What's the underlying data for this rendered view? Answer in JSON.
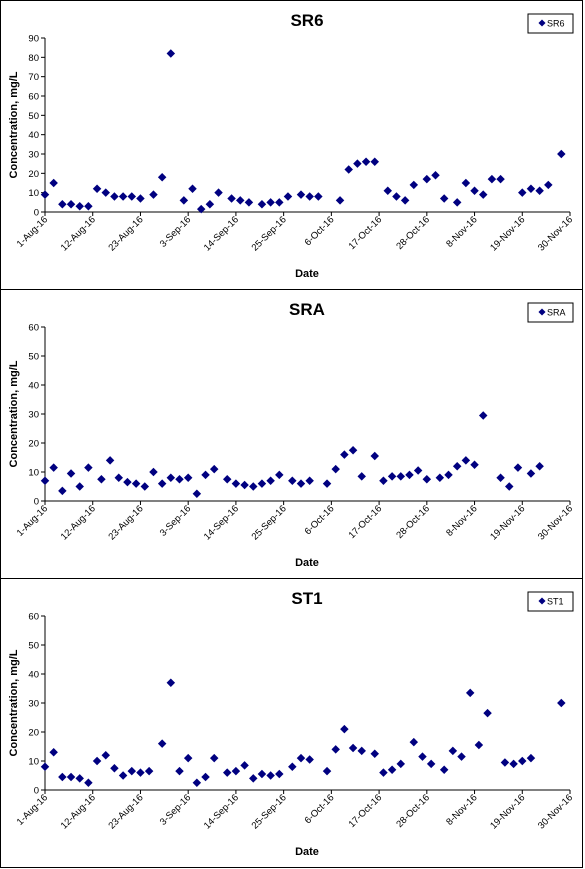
{
  "chart_data": [
    {
      "type": "scatter",
      "title": "SR6",
      "xlabel": "Date",
      "ylabel": "Concentration, mg/L",
      "legend": "SR6",
      "legend_position": "top-right",
      "color": "#000080",
      "ylim": [
        0,
        90
      ],
      "y_ticks": [
        0,
        10,
        20,
        30,
        40,
        50,
        60,
        70,
        80,
        90
      ],
      "xlim": [
        "2016-08-01",
        "2016-11-30"
      ],
      "x_ticks": [
        "1-Aug-16",
        "12-Aug-16",
        "23-Aug-16",
        "3-Sep-16",
        "14-Sep-16",
        "25-Sep-16",
        "6-Oct-16",
        "17-Oct-16",
        "28-Oct-16",
        "8-Nov-16",
        "19-Nov-16",
        "30-Nov-16"
      ],
      "points": [
        [
          "2016-08-01",
          9
        ],
        [
          "2016-08-03",
          15
        ],
        [
          "2016-08-05",
          4
        ],
        [
          "2016-08-07",
          4
        ],
        [
          "2016-08-09",
          3
        ],
        [
          "2016-08-11",
          3
        ],
        [
          "2016-08-13",
          12
        ],
        [
          "2016-08-15",
          10
        ],
        [
          "2016-08-17",
          8
        ],
        [
          "2016-08-19",
          8
        ],
        [
          "2016-08-21",
          8
        ],
        [
          "2016-08-23",
          7
        ],
        [
          "2016-08-26",
          9
        ],
        [
          "2016-08-28",
          18
        ],
        [
          "2016-08-30",
          82
        ],
        [
          "2016-09-02",
          6
        ],
        [
          "2016-09-04",
          12
        ],
        [
          "2016-09-06",
          1.5
        ],
        [
          "2016-09-08",
          4
        ],
        [
          "2016-09-10",
          10
        ],
        [
          "2016-09-13",
          7
        ],
        [
          "2016-09-15",
          6
        ],
        [
          "2016-09-17",
          5
        ],
        [
          "2016-09-20",
          4
        ],
        [
          "2016-09-22",
          5
        ],
        [
          "2016-09-24",
          5
        ],
        [
          "2016-09-26",
          8
        ],
        [
          "2016-09-29",
          9
        ],
        [
          "2016-10-01",
          8
        ],
        [
          "2016-10-03",
          8
        ],
        [
          "2016-10-08",
          6
        ],
        [
          "2016-10-10",
          22
        ],
        [
          "2016-10-12",
          25
        ],
        [
          "2016-10-14",
          26
        ],
        [
          "2016-10-16",
          26
        ],
        [
          "2016-10-19",
          11
        ],
        [
          "2016-10-21",
          8
        ],
        [
          "2016-10-23",
          6
        ],
        [
          "2016-10-25",
          14
        ],
        [
          "2016-10-28",
          17
        ],
        [
          "2016-10-30",
          19
        ],
        [
          "2016-11-01",
          7
        ],
        [
          "2016-11-04",
          5
        ],
        [
          "2016-11-06",
          15
        ],
        [
          "2016-11-08",
          11
        ],
        [
          "2016-11-10",
          9
        ],
        [
          "2016-11-12",
          17
        ],
        [
          "2016-11-14",
          17
        ],
        [
          "2016-11-19",
          10
        ],
        [
          "2016-11-21",
          12
        ],
        [
          "2016-11-23",
          11
        ],
        [
          "2016-11-25",
          14
        ],
        [
          "2016-11-28",
          30
        ]
      ]
    },
    {
      "type": "scatter",
      "title": "SRA",
      "xlabel": "Date",
      "ylabel": "Concentration, mg/L",
      "legend": "SRA",
      "legend_position": "top-right",
      "color": "#000080",
      "ylim": [
        0,
        60
      ],
      "y_ticks": [
        0,
        10,
        20,
        30,
        40,
        50,
        60
      ],
      "xlim": [
        "2016-08-01",
        "2016-11-30"
      ],
      "x_ticks": [
        "1-Aug-16",
        "12-Aug-16",
        "23-Aug-16",
        "3-Sep-16",
        "14-Sep-16",
        "25-Sep-16",
        "6-Oct-16",
        "17-Oct-16",
        "28-Oct-16",
        "8-Nov-16",
        "19-Nov-16",
        "30-Nov-16"
      ],
      "points": [
        [
          "2016-08-01",
          7
        ],
        [
          "2016-08-03",
          11.5
        ],
        [
          "2016-08-05",
          3.5
        ],
        [
          "2016-08-07",
          9.5
        ],
        [
          "2016-08-09",
          5
        ],
        [
          "2016-08-11",
          11.5
        ],
        [
          "2016-08-14",
          7.5
        ],
        [
          "2016-08-16",
          14
        ],
        [
          "2016-08-18",
          8
        ],
        [
          "2016-08-20",
          6.5
        ],
        [
          "2016-08-22",
          6
        ],
        [
          "2016-08-24",
          5
        ],
        [
          "2016-08-26",
          10
        ],
        [
          "2016-08-28",
          6
        ],
        [
          "2016-08-30",
          8
        ],
        [
          "2016-09-01",
          7.5
        ],
        [
          "2016-09-03",
          8
        ],
        [
          "2016-09-05",
          2.5
        ],
        [
          "2016-09-07",
          9
        ],
        [
          "2016-09-09",
          11
        ],
        [
          "2016-09-12",
          7.5
        ],
        [
          "2016-09-14",
          6
        ],
        [
          "2016-09-16",
          5.5
        ],
        [
          "2016-09-18",
          5
        ],
        [
          "2016-09-20",
          6
        ],
        [
          "2016-09-22",
          7
        ],
        [
          "2016-09-24",
          9
        ],
        [
          "2016-09-27",
          7
        ],
        [
          "2016-09-29",
          6
        ],
        [
          "2016-10-01",
          7
        ],
        [
          "2016-10-05",
          6
        ],
        [
          "2016-10-07",
          11
        ],
        [
          "2016-10-09",
          16
        ],
        [
          "2016-10-11",
          17.5
        ],
        [
          "2016-10-13",
          8.5
        ],
        [
          "2016-10-16",
          15.5
        ],
        [
          "2016-10-18",
          7
        ],
        [
          "2016-10-20",
          8.5
        ],
        [
          "2016-10-22",
          8.5
        ],
        [
          "2016-10-24",
          9
        ],
        [
          "2016-10-26",
          10.5
        ],
        [
          "2016-10-28",
          7.5
        ],
        [
          "2016-10-31",
          8
        ],
        [
          "2016-11-02",
          9
        ],
        [
          "2016-11-04",
          12
        ],
        [
          "2016-11-06",
          14
        ],
        [
          "2016-11-08",
          12.5
        ],
        [
          "2016-11-10",
          29.5
        ],
        [
          "2016-11-14",
          8
        ],
        [
          "2016-11-16",
          5
        ],
        [
          "2016-11-18",
          11.5
        ],
        [
          "2016-11-21",
          9.5
        ],
        [
          "2016-11-23",
          12
        ]
      ]
    },
    {
      "type": "scatter",
      "title": "ST1",
      "xlabel": "Date",
      "ylabel": "Concentration, mg/L",
      "legend": "ST1",
      "legend_position": "top-right",
      "color": "#000080",
      "ylim": [
        0,
        60
      ],
      "y_ticks": [
        0,
        10,
        20,
        30,
        40,
        50,
        60
      ],
      "xlim": [
        "2016-08-01",
        "2016-11-30"
      ],
      "x_ticks": [
        "1-Aug-16",
        "12-Aug-16",
        "23-Aug-16",
        "3-Sep-16",
        "14-Sep-16",
        "25-Sep-16",
        "6-Oct-16",
        "17-Oct-16",
        "28-Oct-16",
        "8-Nov-16",
        "19-Nov-16",
        "30-Nov-16"
      ],
      "points": [
        [
          "2016-08-01",
          8
        ],
        [
          "2016-08-03",
          13
        ],
        [
          "2016-08-05",
          4.5
        ],
        [
          "2016-08-07",
          4.5
        ],
        [
          "2016-08-09",
          4
        ],
        [
          "2016-08-11",
          2.5
        ],
        [
          "2016-08-13",
          10
        ],
        [
          "2016-08-15",
          12
        ],
        [
          "2016-08-17",
          7.5
        ],
        [
          "2016-08-19",
          5
        ],
        [
          "2016-08-21",
          6.5
        ],
        [
          "2016-08-23",
          6
        ],
        [
          "2016-08-25",
          6.5
        ],
        [
          "2016-08-28",
          16
        ],
        [
          "2016-08-30",
          37
        ],
        [
          "2016-09-01",
          6.5
        ],
        [
          "2016-09-03",
          11
        ],
        [
          "2016-09-05",
          2.5
        ],
        [
          "2016-09-07",
          4.5
        ],
        [
          "2016-09-09",
          11
        ],
        [
          "2016-09-12",
          6
        ],
        [
          "2016-09-14",
          6.5
        ],
        [
          "2016-09-16",
          8.5
        ],
        [
          "2016-09-18",
          4
        ],
        [
          "2016-09-20",
          5.5
        ],
        [
          "2016-09-22",
          5
        ],
        [
          "2016-09-24",
          5.5
        ],
        [
          "2016-09-27",
          8
        ],
        [
          "2016-09-29",
          11
        ],
        [
          "2016-10-01",
          10.5
        ],
        [
          "2016-10-05",
          6.5
        ],
        [
          "2016-10-07",
          14
        ],
        [
          "2016-10-09",
          21
        ],
        [
          "2016-10-11",
          14.5
        ],
        [
          "2016-10-13",
          13.5
        ],
        [
          "2016-10-16",
          12.5
        ],
        [
          "2016-10-18",
          6
        ],
        [
          "2016-10-20",
          7
        ],
        [
          "2016-10-22",
          9
        ],
        [
          "2016-10-25",
          16.5
        ],
        [
          "2016-10-27",
          11.5
        ],
        [
          "2016-10-29",
          9
        ],
        [
          "2016-11-01",
          7
        ],
        [
          "2016-11-03",
          13.5
        ],
        [
          "2016-11-05",
          11.5
        ],
        [
          "2016-11-07",
          33.5
        ],
        [
          "2016-11-09",
          15.5
        ],
        [
          "2016-11-11",
          26.5
        ],
        [
          "2016-11-15",
          9.5
        ],
        [
          "2016-11-17",
          9
        ],
        [
          "2016-11-19",
          10
        ],
        [
          "2016-11-21",
          11
        ],
        [
          "2016-11-28",
          30
        ]
      ]
    }
  ]
}
